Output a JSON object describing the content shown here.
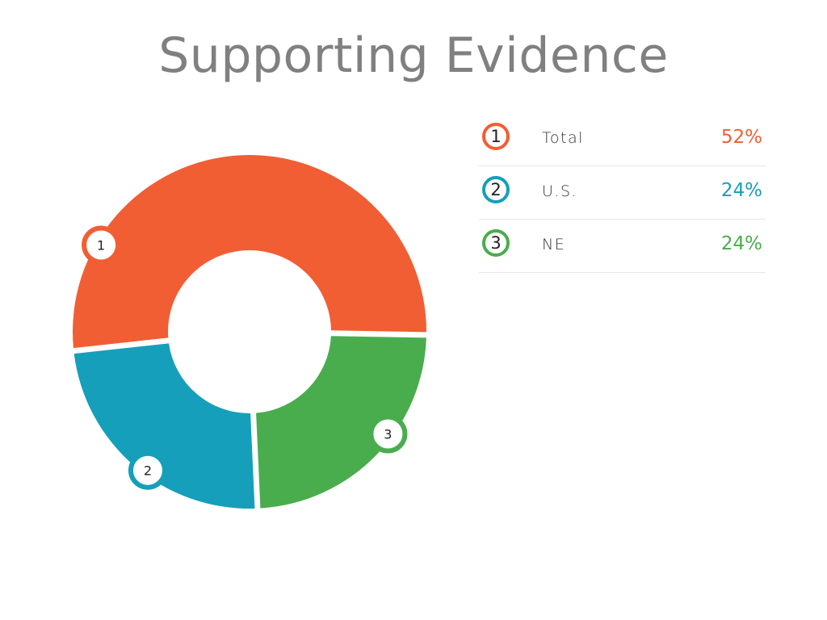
{
  "chart_data": {
    "type": "pie",
    "title": "Supporting Evidence",
    "series": [
      {
        "id": "1",
        "name": "Total",
        "value": 52,
        "label": "52%",
        "color": "#f15e34"
      },
      {
        "id": "2",
        "name": "U.S.",
        "value": 24,
        "label": "24%",
        "color": "#159fba"
      },
      {
        "id": "3",
        "name": "NE",
        "value": 24,
        "label": "24%",
        "color": "#49ad4d"
      }
    ],
    "legend_position": "right",
    "donut": true
  }
}
